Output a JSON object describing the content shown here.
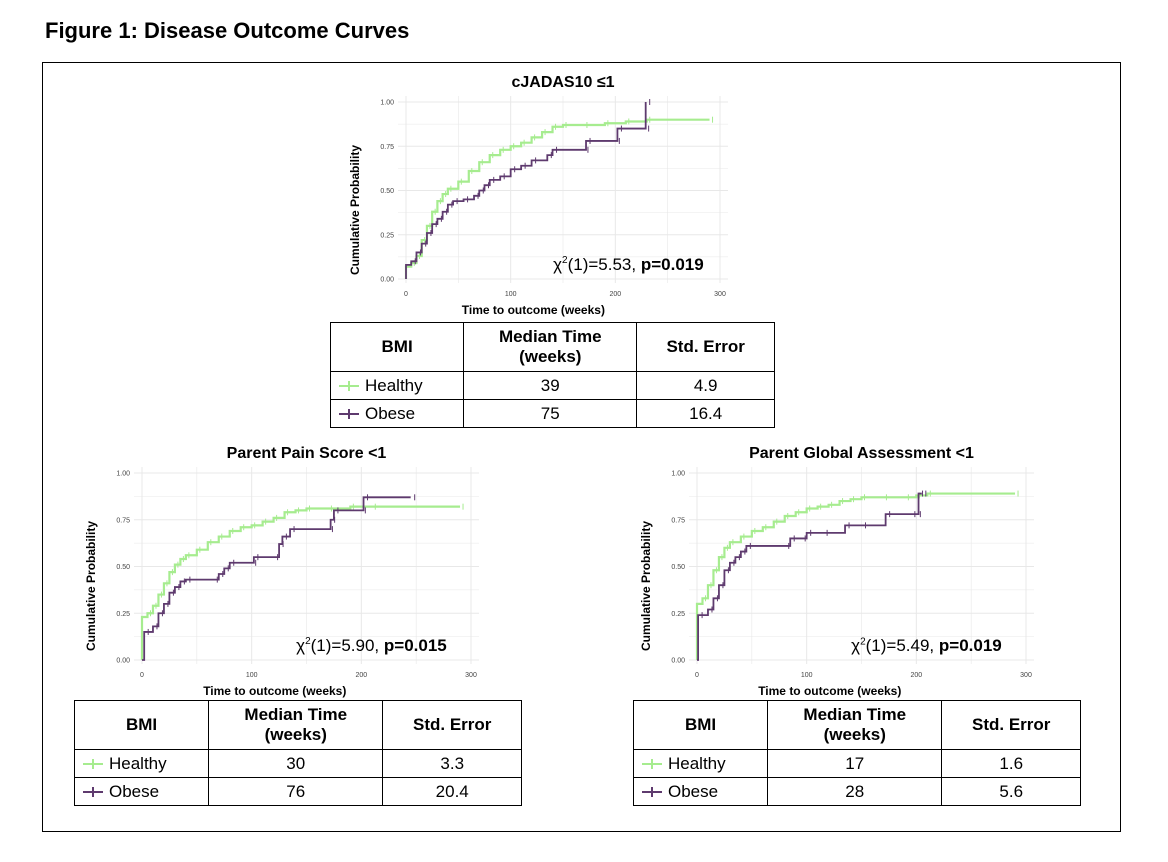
{
  "figure_title": "Figure 1: Disease Outcome Curves",
  "colors": {
    "healthy": "#a6ec8f",
    "obese": "#5e3a6e",
    "grid": "#e8e8e8"
  },
  "table_headers": {
    "bmi": "BMI",
    "median": "Median Time (weeks)",
    "se": "Std. Error"
  },
  "chart_data": [
    {
      "type": "line",
      "title": "cJADAS10 ≤1",
      "xlabel": "Time to outcome (weeks)",
      "ylabel": "Cumulative Probability",
      "xlim": [
        0,
        300
      ],
      "ylim": [
        0,
        1
      ],
      "xticks": [
        "0",
        "100",
        "200",
        "300"
      ],
      "yticks": [
        "0.00",
        "0.25",
        "0.50",
        "0.75",
        "1.00"
      ],
      "grid": true,
      "stat_text": {
        "chi": "χ",
        "sup": "2",
        "rest": "(1)=5.53, ",
        "p": "p=0.019"
      },
      "series": [
        {
          "name": "Healthy",
          "x": [
            0,
            5,
            10,
            15,
            20,
            25,
            30,
            35,
            40,
            50,
            60,
            70,
            80,
            90,
            100,
            110,
            120,
            130,
            140,
            150,
            170,
            190,
            210,
            230,
            290
          ],
          "y": [
            0.07,
            0.09,
            0.13,
            0.22,
            0.3,
            0.38,
            0.44,
            0.48,
            0.51,
            0.55,
            0.61,
            0.66,
            0.7,
            0.73,
            0.75,
            0.77,
            0.8,
            0.83,
            0.86,
            0.87,
            0.87,
            0.88,
            0.89,
            0.9,
            0.9
          ]
        },
        {
          "name": "Obese",
          "x": [
            0,
            5,
            10,
            15,
            20,
            25,
            30,
            35,
            40,
            45,
            55,
            65,
            70,
            75,
            80,
            90,
            100,
            110,
            120,
            135,
            140,
            170,
            172,
            200,
            202,
            228,
            229
          ],
          "y": [
            0.08,
            0.1,
            0.15,
            0.2,
            0.26,
            0.31,
            0.34,
            0.38,
            0.42,
            0.44,
            0.45,
            0.47,
            0.5,
            0.53,
            0.56,
            0.58,
            0.62,
            0.64,
            0.67,
            0.7,
            0.73,
            0.73,
            0.78,
            0.78,
            0.85,
            0.85,
            1.0
          ]
        }
      ],
      "table": [
        {
          "bmi": "Healthy",
          "median": "39",
          "se": "4.9"
        },
        {
          "bmi": "Obese",
          "median": "75",
          "se": "16.4"
        }
      ]
    },
    {
      "type": "line",
      "title": "Parent Pain Score <1",
      "xlabel": "Time to outcome (weeks)",
      "ylabel": "Cumulative Probability",
      "xlim": [
        0,
        300
      ],
      "ylim": [
        0,
        1
      ],
      "xticks": [
        "0",
        "100",
        "200",
        "300"
      ],
      "yticks": [
        "0.00",
        "0.25",
        "0.50",
        "0.75",
        "1.00"
      ],
      "grid": true,
      "stat_text": {
        "chi": "χ",
        "sup": "2",
        "rest": "(1)=5.90, ",
        "p": "p=0.015"
      },
      "series": [
        {
          "name": "Healthy",
          "x": [
            0,
            5,
            10,
            15,
            20,
            25,
            30,
            35,
            40,
            50,
            60,
            70,
            80,
            90,
            100,
            110,
            120,
            130,
            140,
            150,
            170,
            190,
            210,
            290
          ],
          "y": [
            0.23,
            0.25,
            0.29,
            0.35,
            0.41,
            0.47,
            0.51,
            0.54,
            0.56,
            0.59,
            0.63,
            0.66,
            0.69,
            0.71,
            0.72,
            0.74,
            0.76,
            0.79,
            0.8,
            0.81,
            0.81,
            0.82,
            0.82,
            0.82
          ]
        },
        {
          "name": "Obese",
          "x": [
            0,
            2,
            10,
            15,
            20,
            25,
            30,
            35,
            40,
            65,
            70,
            75,
            80,
            100,
            102,
            120,
            125,
            128,
            135,
            170,
            172,
            175,
            200,
            202,
            245
          ],
          "y": [
            0.0,
            0.15,
            0.18,
            0.25,
            0.3,
            0.36,
            0.39,
            0.42,
            0.43,
            0.43,
            0.46,
            0.49,
            0.52,
            0.52,
            0.55,
            0.55,
            0.62,
            0.66,
            0.7,
            0.7,
            0.75,
            0.8,
            0.8,
            0.87,
            0.87
          ]
        }
      ],
      "table": [
        {
          "bmi": "Healthy",
          "median": "30",
          "se": "3.3"
        },
        {
          "bmi": "Obese",
          "median": "76",
          "se": "20.4"
        }
      ]
    },
    {
      "type": "line",
      "title": "Parent Global Assessment <1",
      "xlabel": "Time to outcome (weeks)",
      "ylabel": "Cumulative Probability",
      "xlim": [
        0,
        300
      ],
      "ylim": [
        0,
        1
      ],
      "xticks": [
        "0",
        "100",
        "200",
        "300"
      ],
      "yticks": [
        "0.00",
        "0.25",
        "0.50",
        "0.75",
        "1.00"
      ],
      "grid": true,
      "stat_text": {
        "chi": "χ",
        "sup": "2",
        "rest": "(1)=5.49, ",
        "p": "p=0.019"
      },
      "series": [
        {
          "name": "Healthy",
          "x": [
            0,
            5,
            10,
            15,
            20,
            25,
            30,
            40,
            50,
            60,
            70,
            80,
            90,
            100,
            110,
            120,
            130,
            140,
            150,
            170,
            190,
            200,
            210,
            290
          ],
          "y": [
            0.3,
            0.33,
            0.4,
            0.48,
            0.55,
            0.6,
            0.63,
            0.66,
            0.69,
            0.71,
            0.74,
            0.77,
            0.79,
            0.81,
            0.82,
            0.83,
            0.85,
            0.86,
            0.87,
            0.87,
            0.87,
            0.88,
            0.89,
            0.89
          ]
        },
        {
          "name": "Obese",
          "x": [
            0,
            1,
            10,
            15,
            20,
            25,
            30,
            35,
            40,
            45,
            80,
            85,
            95,
            100,
            115,
            135,
            150,
            172,
            195,
            200,
            202,
            205
          ],
          "y": [
            0.0,
            0.24,
            0.27,
            0.33,
            0.4,
            0.48,
            0.52,
            0.55,
            0.58,
            0.61,
            0.61,
            0.65,
            0.65,
            0.68,
            0.68,
            0.72,
            0.72,
            0.78,
            0.78,
            0.78,
            0.89,
            0.89
          ]
        }
      ],
      "table": [
        {
          "bmi": "Healthy",
          "median": "17",
          "se": "1.6"
        },
        {
          "bmi": "Obese",
          "median": "28",
          "se": "5.6"
        }
      ]
    }
  ]
}
